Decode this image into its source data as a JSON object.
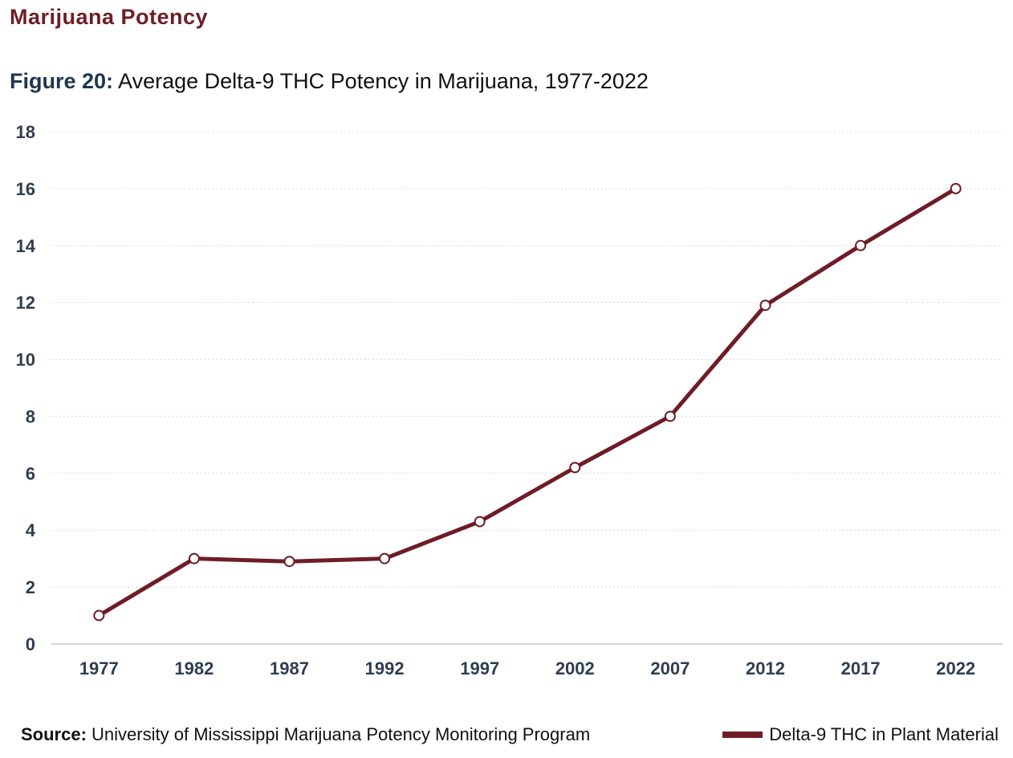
{
  "header": {
    "section_title": "Marijuana Potency",
    "figure_label": "Figure 20:",
    "figure_title": "Average Delta-9 THC Potency in Marijuana, 1977-2022"
  },
  "footer": {
    "source_label": "Source:",
    "source_text": "University of Mississippi Marijuana Potency Monitoring Program"
  },
  "colors": {
    "series": "#6e1d26",
    "axis_text": "#2f3e4f",
    "section_title": "#6e1d26",
    "figure_label": "#1f3550"
  },
  "chart_data": {
    "type": "line",
    "title": "",
    "xlabel": "",
    "ylabel": "",
    "categories": [
      "1977",
      "1982",
      "1987",
      "1992",
      "1997",
      "2002",
      "2007",
      "2012",
      "2017",
      "2022"
    ],
    "ylim": [
      0,
      18
    ],
    "yticks": [
      0,
      2,
      4,
      6,
      8,
      10,
      12,
      14,
      16,
      18
    ],
    "grid": true,
    "legend_position": "bottom-right",
    "series": [
      {
        "name": "Delta-9 THC in Plant Material",
        "values": [
          1.0,
          3.0,
          2.9,
          3.0,
          4.3,
          6.2,
          8.0,
          11.9,
          14.0,
          16.0
        ]
      }
    ]
  }
}
